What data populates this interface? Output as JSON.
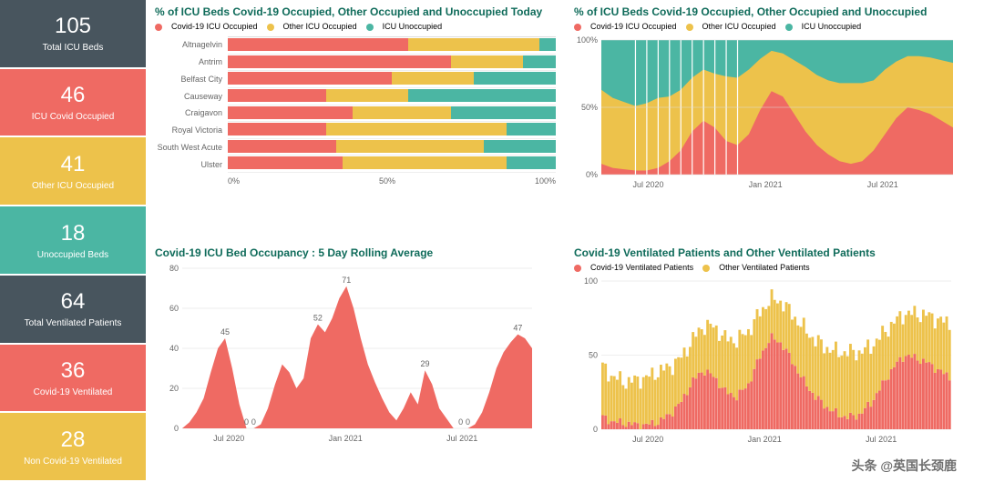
{
  "colors": {
    "slate": "#48555e",
    "coral": "#ef6a63",
    "gold": "#edc24b",
    "teal": "#4bb6a3",
    "title": "#0f6b5a",
    "grid": "#dddddd",
    "bg": "#ffffff"
  },
  "kpis": [
    {
      "value": "105",
      "label": "Total ICU Beds",
      "color": "slate"
    },
    {
      "value": "46",
      "label": "ICU Covid Occupied",
      "color": "coral"
    },
    {
      "value": "41",
      "label": "Other ICU Occupied",
      "color": "gold"
    },
    {
      "value": "18",
      "label": "Unoccupied Beds",
      "color": "teal"
    },
    {
      "value": "64",
      "label": "Total Ventilated Patients",
      "color": "slate"
    },
    {
      "value": "36",
      "label": "Covid-19 Ventilated",
      "color": "coral"
    },
    {
      "value": "28",
      "label": "Non Covid-19 Ventilated",
      "color": "gold"
    }
  ],
  "hospital_bars": {
    "title": "% of ICU Beds Covid-19 Occupied, Other Occupied and Unoccupied Today",
    "legend": [
      {
        "label": "Covid-19 ICU Occupied",
        "color": "coral"
      },
      {
        "label": "Other ICU Occupied",
        "color": "gold"
      },
      {
        "label": "ICU Unoccupied",
        "color": "teal"
      }
    ],
    "xticks": [
      "0%",
      "50%",
      "100%"
    ],
    "rows": [
      {
        "name": "Altnagelvin",
        "covid": 55,
        "other": 40,
        "unocc": 5
      },
      {
        "name": "Antrim",
        "covid": 68,
        "other": 22,
        "unocc": 10
      },
      {
        "name": "Belfast City",
        "covid": 50,
        "other": 25,
        "unocc": 25
      },
      {
        "name": "Causeway",
        "covid": 30,
        "other": 25,
        "unocc": 45
      },
      {
        "name": "Craigavon",
        "covid": 38,
        "other": 30,
        "unocc": 32
      },
      {
        "name": "Royal Victoria",
        "covid": 30,
        "other": 55,
        "unocc": 15
      },
      {
        "name": "South West Acute",
        "covid": 33,
        "other": 45,
        "unocc": 22
      },
      {
        "name": "Ulster",
        "covid": 35,
        "other": 50,
        "unocc": 15
      }
    ]
  },
  "stacked_area": {
    "title": "% of ICU Beds Covid-19 Occupied, Other Occupied and Unoccupied",
    "legend": [
      {
        "label": "Covid-19 ICU Occupied",
        "color": "coral"
      },
      {
        "label": "Other ICU Occupied",
        "color": "gold"
      },
      {
        "label": "ICU Unoccupied",
        "color": "teal"
      }
    ],
    "ylim": [
      0,
      100
    ],
    "yticks": [
      0,
      50,
      100
    ],
    "xticks": [
      "Jul 2020",
      "Jan 2021",
      "Jul 2021"
    ],
    "covid": [
      8,
      5,
      4,
      3,
      3,
      5,
      10,
      18,
      32,
      40,
      35,
      25,
      22,
      30,
      48,
      62,
      58,
      45,
      32,
      22,
      15,
      10,
      8,
      10,
      18,
      30,
      42,
      50,
      48,
      45,
      40,
      35
    ],
    "other": [
      55,
      52,
      50,
      48,
      50,
      52,
      48,
      45,
      40,
      38,
      40,
      48,
      50,
      48,
      38,
      30,
      32,
      40,
      48,
      52,
      55,
      58,
      60,
      58,
      52,
      48,
      42,
      38,
      40,
      42,
      45,
      48
    ]
  },
  "rolling_area": {
    "title": "Covid-19 ICU Bed Occupancy : 5 Day Rolling Average",
    "ylim": [
      0,
      80
    ],
    "yticks": [
      0,
      20,
      40,
      60,
      80
    ],
    "xticks": [
      "Jul 2020",
      "Jan 2021",
      "Jul 2021"
    ],
    "color": "coral",
    "data": [
      0,
      3,
      8,
      15,
      28,
      40,
      45,
      30,
      12,
      0,
      0,
      2,
      10,
      22,
      32,
      28,
      20,
      25,
      45,
      52,
      48,
      55,
      65,
      71,
      60,
      45,
      32,
      23,
      15,
      8,
      4,
      10,
      18,
      12,
      29,
      22,
      10,
      5,
      0,
      0,
      0,
      2,
      8,
      18,
      30,
      38,
      43,
      47,
      45,
      40
    ],
    "annotations": [
      {
        "i": 6,
        "v": 45,
        "label": "45"
      },
      {
        "i": 9,
        "v": 0,
        "label": "0"
      },
      {
        "i": 10,
        "v": 0,
        "label": "0"
      },
      {
        "i": 19,
        "v": 52,
        "label": "52"
      },
      {
        "i": 23,
        "v": 71,
        "label": "71"
      },
      {
        "i": 34,
        "v": 29,
        "label": "29"
      },
      {
        "i": 39,
        "v": 0,
        "label": "0"
      },
      {
        "i": 40,
        "v": 0,
        "label": "0"
      },
      {
        "i": 47,
        "v": 47,
        "label": "47"
      }
    ]
  },
  "vent_bars": {
    "title": "Covid-19 Ventilated Patients and Other Ventilated Patients",
    "legend": [
      {
        "label": "Covid-19 Ventilated Patients",
        "color": "coral"
      },
      {
        "label": "Other Ventilated Patients",
        "color": "gold"
      }
    ],
    "ylim": [
      0,
      100
    ],
    "yticks": [
      0,
      50,
      100
    ],
    "xticks": [
      "Jul 2020",
      "Jan 2021",
      "Jul 2021"
    ],
    "n": 120,
    "covid_seed": [
      8,
      5,
      4,
      3,
      3,
      5,
      10,
      18,
      32,
      40,
      35,
      25,
      22,
      30,
      48,
      62,
      58,
      45,
      32,
      22,
      15,
      10,
      8,
      10,
      18,
      30,
      42,
      50,
      48,
      45,
      40,
      35
    ],
    "other_seed": [
      34,
      30,
      28,
      30,
      32,
      34,
      32,
      30,
      28,
      30,
      34,
      36,
      38,
      36,
      30,
      26,
      28,
      32,
      36,
      38,
      40,
      42,
      44,
      42,
      38,
      34,
      30,
      28,
      30,
      32,
      34,
      36
    ]
  },
  "watermark": "头条 @英国长颈鹿"
}
